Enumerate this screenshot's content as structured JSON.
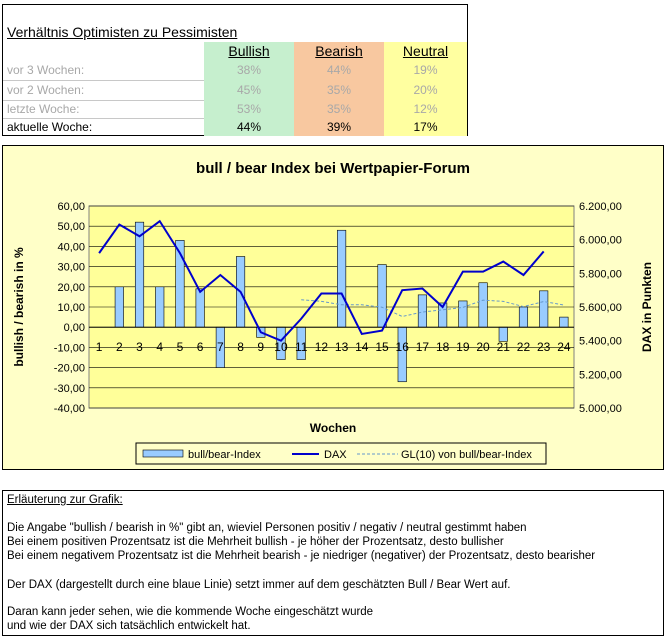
{
  "table": {
    "title": "Verhältnis Optimisten zu Pessimisten",
    "headers": [
      "Bullish",
      "Bearish",
      "Neutral"
    ],
    "rows": [
      {
        "label": "vor 3 Wochen:",
        "bullish": "38%",
        "bearish": "44%",
        "neutral": "19%"
      },
      {
        "label": "vor 2 Wochen:",
        "bullish": "45%",
        "bearish": "35%",
        "neutral": "20%"
      },
      {
        "label": "letzte Woche:",
        "bullish": "53%",
        "bearish": "35%",
        "neutral": "12%"
      },
      {
        "label": "aktuelle Woche:",
        "bullish": "44%",
        "bearish": "39%",
        "neutral": "17%"
      }
    ],
    "colors": {
      "bullish": "#c6efce",
      "bearish": "#f8c8a0",
      "neutral": "#ffffa0"
    }
  },
  "chart_data": {
    "type": "bar",
    "title": "bull / bear Index bei Wertpapier-Forum",
    "xlabel": "Wochen",
    "ylabel": "bullish / bearish in %",
    "y2label": "DAX in Punkten",
    "categories": [
      "1",
      "2",
      "3",
      "4",
      "5",
      "6",
      "7",
      "8",
      "9",
      "10",
      "11",
      "12",
      "13",
      "14",
      "15",
      "16",
      "17",
      "18",
      "19",
      "20",
      "21",
      "22",
      "23",
      "24"
    ],
    "ylim": [
      -40,
      60
    ],
    "y2lim": [
      5000,
      6200
    ],
    "yticks": [
      "60,00",
      "50,00",
      "40,00",
      "30,00",
      "20,00",
      "10,00",
      "0,00",
      "-10,00",
      "-20,00",
      "-30,00",
      "-40,00"
    ],
    "y2ticks": [
      "6.200,00",
      "6.000,00",
      "5.800,00",
      "5.600,00",
      "5.400,00",
      "5.200,00",
      "5.000,00"
    ],
    "grid": true,
    "legend": {
      "placement": "bottom",
      "entries": [
        "bull/bear-Index",
        "DAX",
        "GL(10) von bull/bear-Index"
      ]
    },
    "series": [
      {
        "name": "bull/bear-Index",
        "type": "bar",
        "color": "#99ccff",
        "values": [
          null,
          20,
          52,
          20,
          43,
          19,
          -20,
          35,
          -5,
          -16,
          -16,
          null,
          48,
          null,
          31,
          -27,
          16,
          12,
          13,
          22,
          -7,
          10,
          18,
          5
        ]
      },
      {
        "name": "DAX",
        "type": "line",
        "axis": "right",
        "color": "#0000cc",
        "values": [
          5920,
          6090,
          6020,
          6110,
          5920,
          5690,
          5790,
          5690,
          5450,
          5400,
          5530,
          5680,
          5680,
          5440,
          5460,
          5700,
          5710,
          5600,
          5810,
          5810,
          5870,
          5790,
          5930,
          null
        ]
      },
      {
        "name": "GL(10) von bull/bear-Index",
        "type": "line",
        "style": "dashed",
        "color": "#6699cc",
        "values": [
          null,
          null,
          null,
          null,
          null,
          null,
          null,
          null,
          null,
          null,
          13.6,
          12.8,
          11.1,
          11.1,
          9.9,
          5.3,
          7.5,
          8.6,
          9.8,
          13.4,
          12.8,
          10.2,
          12.7,
          11.0
        ]
      }
    ]
  },
  "explanation": {
    "heading": "Erläuterung zur Grafik:",
    "lines": [
      "Die Angabe \"bullish / bearish in %\" gibt an, wieviel Personen positiv / negativ / neutral gestimmt haben",
      "Bei einem positiven Prozentsatz ist die Mehrheit bullish - je höher der Prozentsatz, desto bullisher",
      "Bei einem negativem Prozentsatz ist die Mehrheit bearish - je niedriger (negativer) der Prozentsatz, desto bearisher",
      "Der DAX (dargestellt durch eine blaue Linie) setzt immer auf dem geschätzten Bull / Bear Wert auf.",
      "Daran kann jeder sehen, wie die kommende Woche eingeschätzt wurde",
      "und wie der DAX sich tatsächlich entwickelt hat."
    ]
  }
}
